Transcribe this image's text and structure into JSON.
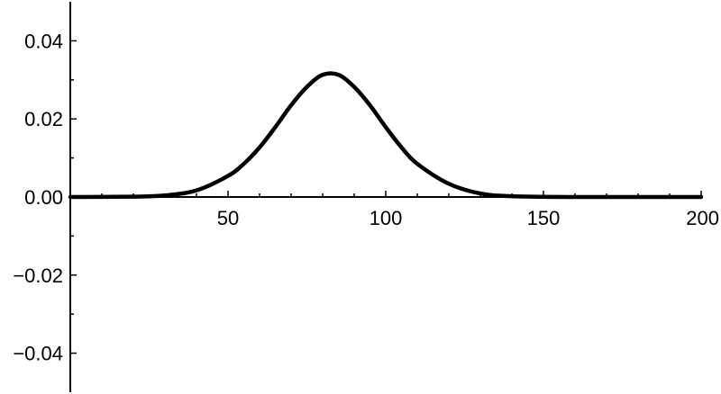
{
  "chart_data": {
    "type": "line",
    "title": "",
    "xlabel": "",
    "ylabel": "",
    "xlim": [
      0,
      200
    ],
    "ylim": [
      -0.05,
      0.05
    ],
    "grid": false,
    "legend": "none",
    "x_ticks": [
      {
        "value": 50,
        "label": "50"
      },
      {
        "value": 100,
        "label": "100"
      },
      {
        "value": 150,
        "label": "150"
      },
      {
        "value": 200,
        "label": "200"
      }
    ],
    "y_ticks": [
      {
        "value": 0.04,
        "label": "0.04"
      },
      {
        "value": 0.02,
        "label": "0.02"
      },
      {
        "value": 0.0,
        "label": "0.00"
      },
      {
        "value": -0.02,
        "label": "−0.02"
      },
      {
        "value": -0.04,
        "label": "−0.04"
      }
    ],
    "line_color": "#000000",
    "series": [
      {
        "x": [
          0,
          20,
          30,
          40,
          50,
          55,
          60,
          65,
          70,
          75,
          80,
          85,
          90,
          95,
          100,
          105,
          110,
          120,
          130,
          140,
          160,
          200
        ],
        "y": [
          0.0,
          0.0001,
          0.0004,
          0.0017,
          0.0054,
          0.0085,
          0.0127,
          0.0179,
          0.0235,
          0.0282,
          0.0313,
          0.0313,
          0.0282,
          0.0235,
          0.0179,
          0.0127,
          0.0085,
          0.0034,
          0.0009,
          0.0002,
          0.0,
          0.0
        ]
      }
    ]
  }
}
